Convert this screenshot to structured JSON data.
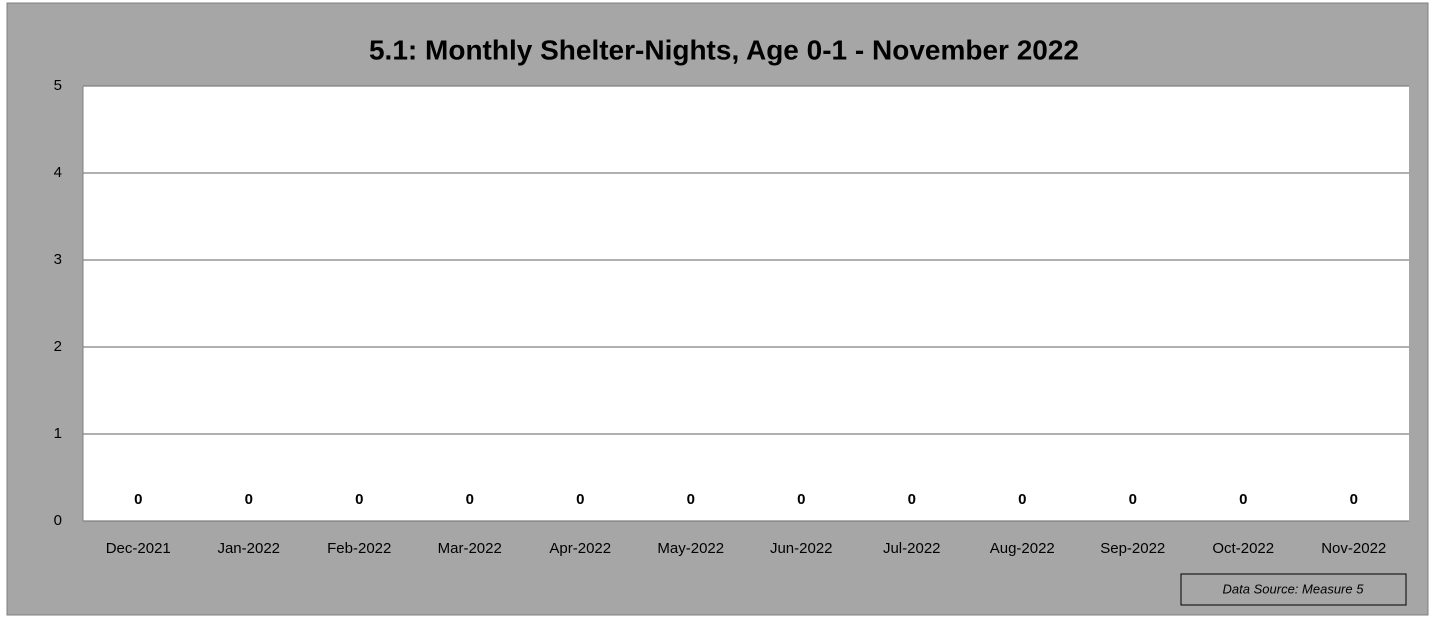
{
  "chart_data": {
    "type": "bar",
    "title": "5.1: Monthly Shelter-Nights, Age 0-1 - November 2022",
    "categories": [
      "Dec-2021",
      "Jan-2022",
      "Feb-2022",
      "Mar-2022",
      "Apr-2022",
      "May-2022",
      "Jun-2022",
      "Jul-2022",
      "Aug-2022",
      "Sep-2022",
      "Oct-2022",
      "Nov-2022"
    ],
    "values": [
      0,
      0,
      0,
      0,
      0,
      0,
      0,
      0,
      0,
      0,
      0,
      0
    ],
    "color": "#4f81bd",
    "ylim": [
      0,
      5
    ],
    "yticks": [
      0,
      1,
      2,
      3,
      4,
      5
    ],
    "grid": true,
    "annotation": "Data Source: Measure 5"
  }
}
